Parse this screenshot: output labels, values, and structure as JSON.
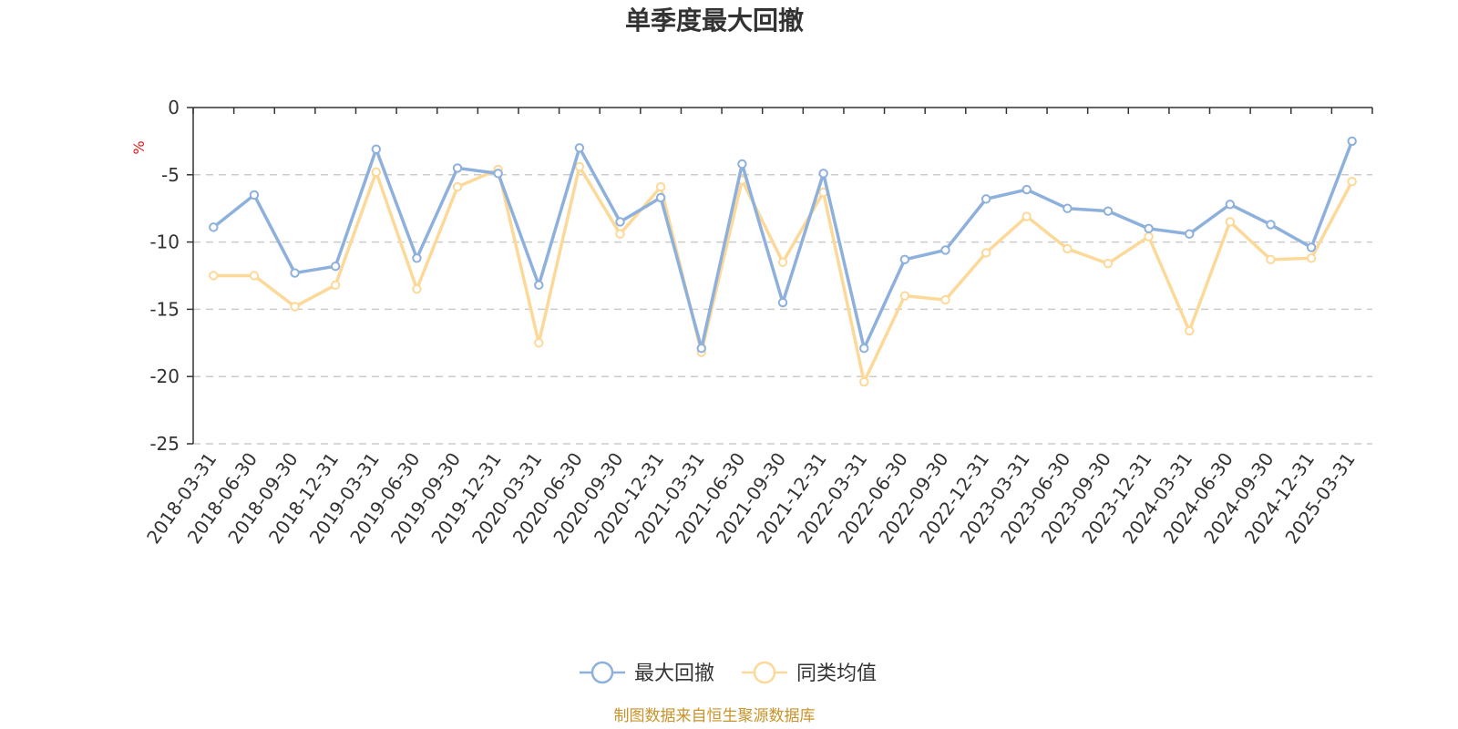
{
  "chart_data": {
    "type": "line",
    "title": "单季度最大回撤",
    "ylabel": "%",
    "ylim": [
      -25,
      0
    ],
    "yticks": [
      0,
      -5,
      -10,
      -15,
      -20,
      -25
    ],
    "grid": true,
    "legend_position": "bottom",
    "categories": [
      "2018-03-31",
      "2018-06-30",
      "2018-09-30",
      "2018-12-31",
      "2019-03-31",
      "2019-06-30",
      "2019-09-30",
      "2019-12-31",
      "2020-03-31",
      "2020-06-30",
      "2020-09-30",
      "2020-12-31",
      "2021-03-31",
      "2021-06-30",
      "2021-09-30",
      "2021-12-31",
      "2022-03-31",
      "2022-06-30",
      "2022-09-30",
      "2022-12-31",
      "2023-03-31",
      "2023-06-30",
      "2023-09-30",
      "2023-12-31",
      "2024-03-31",
      "2024-06-30",
      "2024-09-30",
      "2024-12-31",
      "2025-03-31"
    ],
    "series": [
      {
        "name": "最大回撤",
        "color": "#8eb0dc",
        "values": [
          -8.9,
          -6.5,
          -12.3,
          -11.8,
          -3.1,
          -11.2,
          -4.5,
          -4.9,
          -13.2,
          -3.0,
          -8.5,
          -6.7,
          -17.9,
          -4.2,
          -14.5,
          -4.9,
          -17.9,
          -11.3,
          -10.6,
          -6.8,
          -6.1,
          -7.5,
          -7.7,
          -9.0,
          -9.4,
          -7.2,
          -8.7,
          -10.4,
          -2.5
        ]
      },
      {
        "name": "同类均值",
        "color": "#fcd999",
        "values": [
          -12.5,
          -12.5,
          -14.8,
          -13.2,
          -4.8,
          -13.5,
          -5.9,
          -4.6,
          -17.5,
          -4.4,
          -9.4,
          -5.9,
          -18.2,
          -5.4,
          -11.5,
          -6.3,
          -20.4,
          -14.0,
          -14.3,
          -10.8,
          -8.1,
          -10.5,
          -11.6,
          -9.6,
          -16.6,
          -8.5,
          -11.3,
          -11.2,
          -5.5
        ]
      }
    ]
  },
  "source_text": "制图数据来自恒生聚源数据库"
}
